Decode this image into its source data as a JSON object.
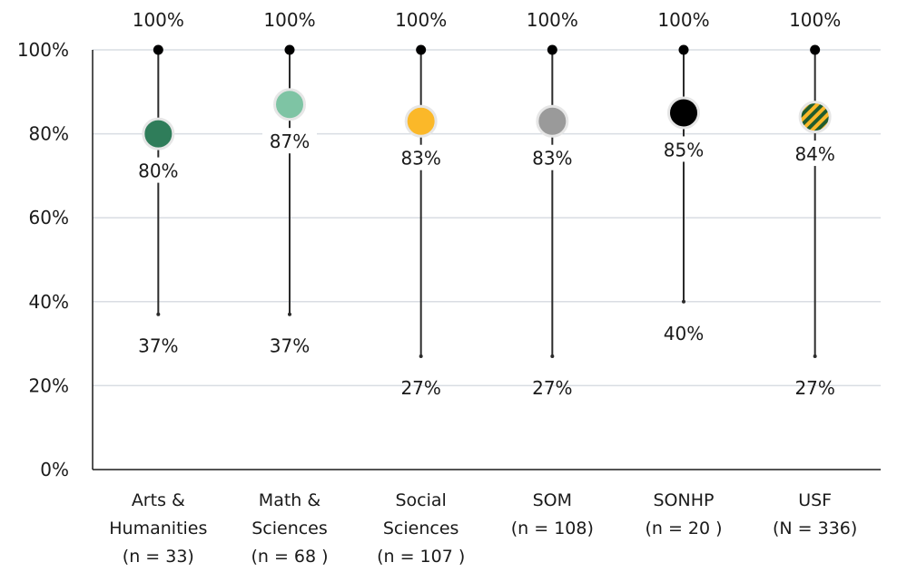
{
  "chart_data": {
    "type": "scatter",
    "ylim": [
      0,
      100
    ],
    "y_ticks": [
      "0%",
      "20%",
      "40%",
      "60%",
      "80%",
      "100%"
    ],
    "y_tick_values": [
      0,
      20,
      40,
      60,
      80,
      100
    ],
    "grid": true,
    "categories": [
      {
        "lines": [
          "Arts &",
          "Humanities",
          "(n = 33)"
        ],
        "max": 100,
        "mean": 80,
        "min": 37,
        "max_label": "100%",
        "mean_label": "80%",
        "min_label": "37%",
        "color": "#2f7d5a",
        "pattern": false
      },
      {
        "lines": [
          "Math &",
          "Sciences",
          "(n = 68 )"
        ],
        "max": 100,
        "mean": 87,
        "min": 37,
        "max_label": "100%",
        "mean_label": "87%",
        "min_label": "37%",
        "color": "#7ec4a4",
        "pattern": false
      },
      {
        "lines": [
          "Social",
          "Sciences",
          "(n = 107 )"
        ],
        "max": 100,
        "mean": 83,
        "min": 27,
        "max_label": "100%",
        "mean_label": "83%",
        "min_label": "27%",
        "color": "#fbb829",
        "pattern": false
      },
      {
        "lines": [
          "SOM",
          "(n = 108)"
        ],
        "max": 100,
        "mean": 83,
        "min": 27,
        "max_label": "100%",
        "mean_label": "83%",
        "min_label": "27%",
        "color": "#9a9a9a",
        "pattern": false
      },
      {
        "lines": [
          "SONHP",
          "(n = 20 )"
        ],
        "max": 100,
        "mean": 85,
        "min": 40,
        "max_label": "100%",
        "mean_label": "85%",
        "min_label": "40%",
        "color": "#000000",
        "pattern": false
      },
      {
        "lines": [
          "USF",
          "(N = 336)"
        ],
        "max": 100,
        "mean": 84,
        "min": 27,
        "max_label": "100%",
        "mean_label": "84%",
        "min_label": "27%",
        "color": "#fbb829",
        "pattern": true,
        "pattern_color": "#1f5c2e"
      }
    ]
  }
}
